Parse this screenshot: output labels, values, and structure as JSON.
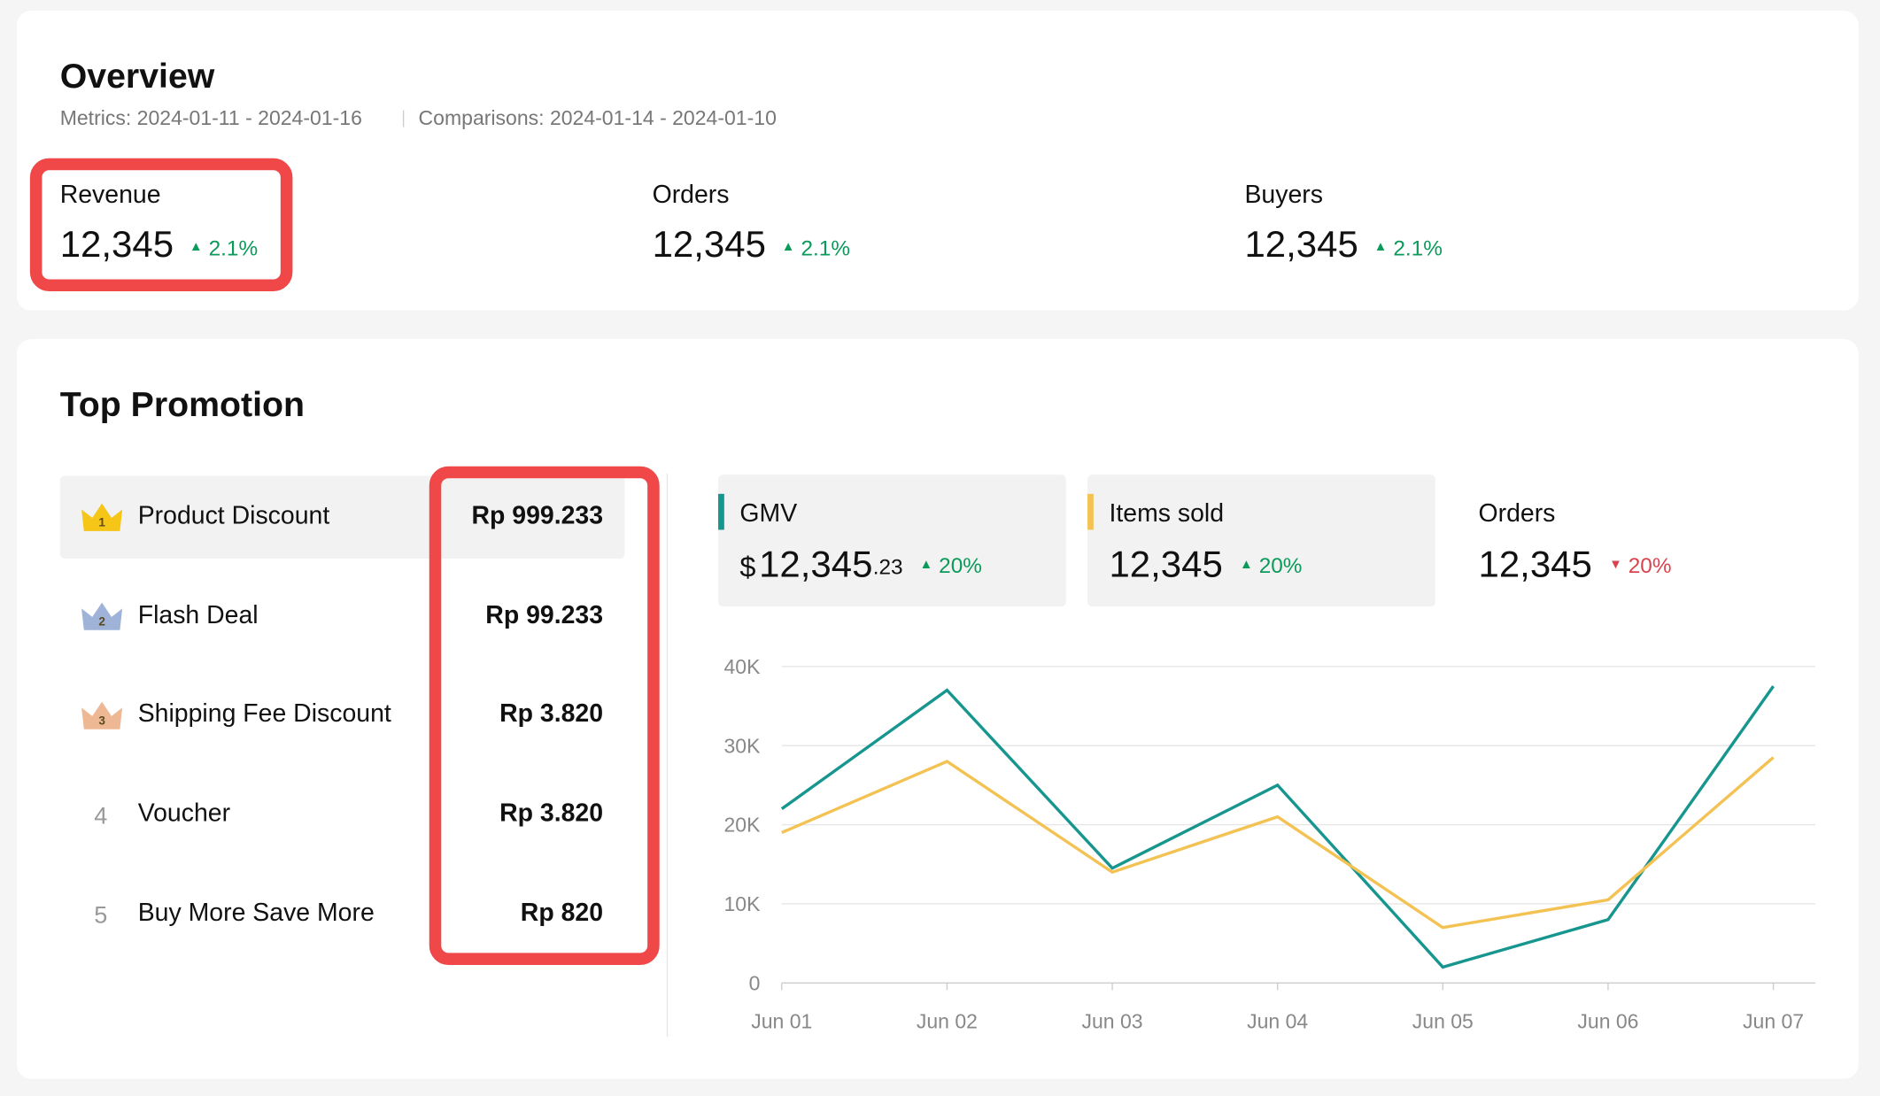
{
  "overview": {
    "title": "Overview",
    "metrics_period": "Metrics: 2024-01-11 - 2024-01-16",
    "comparison_period": "Comparisons: 2024-01-14 - 2024-01-10",
    "metrics": [
      {
        "label": "Revenue",
        "value": "12,345",
        "change": "2.1%",
        "direction": "up"
      },
      {
        "label": "Orders",
        "value": "12,345",
        "change": "2.1%",
        "direction": "up"
      },
      {
        "label": "Buyers",
        "value": "12,345",
        "change": "2.1%",
        "direction": "up"
      }
    ]
  },
  "top_promotion": {
    "title": "Top Promotion",
    "ranking": [
      {
        "rank": 1,
        "name": "Product Discount",
        "amount": "Rp 999.233"
      },
      {
        "rank": 2,
        "name": "Flash Deal",
        "amount": "Rp 99.233"
      },
      {
        "rank": 3,
        "name": "Shipping Fee Discount",
        "amount": "Rp 3.820"
      },
      {
        "rank": 4,
        "name": "Voucher",
        "amount": "Rp 3.820"
      },
      {
        "rank": 5,
        "name": "Buy More Save More",
        "amount": "Rp 820"
      }
    ],
    "kpis": [
      {
        "prefix": "$",
        "value": "12,345",
        "decimals": ".23",
        "change": "20%",
        "direction": "up"
      },
      {
        "value": "12,345",
        "change": "20%",
        "direction": "up"
      },
      {
        "label": "Orders",
        "value": "12,345",
        "change": "20%",
        "direction": "down"
      }
    ]
  },
  "chart_data": {
    "type": "line",
    "categories": [
      "Jun 01",
      "Jun 02",
      "Jun 03",
      "Jun 04",
      "Jun 05",
      "Jun 06",
      "Jun 07"
    ],
    "series": [
      {
        "name": "GMV",
        "color": "#17958f",
        "values": [
          22000,
          37000,
          14500,
          25000,
          2000,
          8000,
          37500
        ]
      },
      {
        "name": "Items sold",
        "color": "#f3c253",
        "values": [
          19000,
          28000,
          14000,
          21000,
          7000,
          10500,
          28500
        ]
      }
    ],
    "ylim": [
      0,
      40000
    ],
    "yticks": [
      0,
      {
        "value": 10000,
        "label": "10K"
      },
      {
        "value": 20000,
        "label": "20K"
      },
      {
        "value": 30000,
        "label": "30K"
      },
      {
        "value": 40000,
        "label": "40K"
      }
    ],
    "grid": true
  }
}
